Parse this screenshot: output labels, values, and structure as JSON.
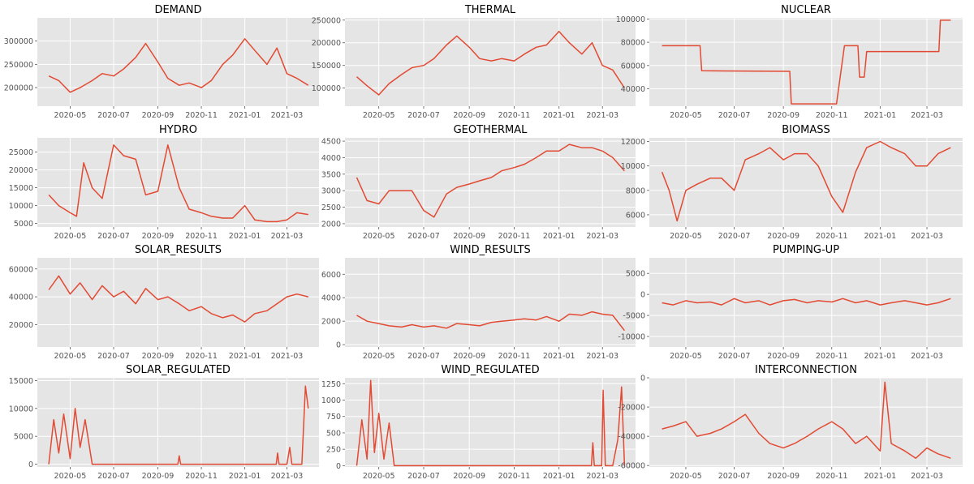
{
  "figure": {
    "colors": {
      "panel_bg": "#e5e5e5",
      "grid": "#ffffff",
      "line": "#e24a33",
      "tick_text": "#555555",
      "title_text": "#000000"
    },
    "x_ticks": [
      "2020-05",
      "2020-07",
      "2020-09",
      "2020-11",
      "2021-01",
      "2021-03"
    ],
    "x_tick_dates": [
      "2020-05-01",
      "2020-07-01",
      "2020-09-01",
      "2020-11-01",
      "2021-01-01",
      "2021-03-01"
    ],
    "x_range": [
      "2020-03-16",
      "2021-04-15"
    ]
  },
  "chart_data": [
    {
      "type": "line",
      "title": "DEMAND",
      "grid": true,
      "ylim": [
        160000,
        350000
      ],
      "yticks": [
        200000,
        250000,
        300000
      ],
      "x": [
        "2020-04-01",
        "2020-04-15",
        "2020-05-01",
        "2020-05-15",
        "2020-06-01",
        "2020-06-15",
        "2020-07-01",
        "2020-07-15",
        "2020-08-01",
        "2020-08-15",
        "2020-09-01",
        "2020-09-15",
        "2020-10-01",
        "2020-10-15",
        "2020-11-01",
        "2020-11-15",
        "2020-12-01",
        "2020-12-15",
        "2021-01-01",
        "2021-01-15",
        "2021-02-01",
        "2021-02-15",
        "2021-03-01",
        "2021-03-15",
        "2021-03-31"
      ],
      "y": [
        225000,
        215000,
        190000,
        200000,
        215000,
        230000,
        225000,
        240000,
        265000,
        295000,
        255000,
        220000,
        205000,
        210000,
        200000,
        215000,
        250000,
        270000,
        305000,
        280000,
        250000,
        285000,
        230000,
        220000,
        205000
      ]
    },
    {
      "type": "line",
      "title": "THERMAL",
      "grid": true,
      "ylim": [
        60000,
        255000
      ],
      "yticks": [
        100000,
        150000,
        200000,
        250000
      ],
      "x": [
        "2020-04-01",
        "2020-04-15",
        "2020-05-01",
        "2020-05-15",
        "2020-06-01",
        "2020-06-15",
        "2020-07-01",
        "2020-07-15",
        "2020-08-01",
        "2020-08-15",
        "2020-09-01",
        "2020-09-15",
        "2020-10-01",
        "2020-10-15",
        "2020-11-01",
        "2020-11-15",
        "2020-12-01",
        "2020-12-15",
        "2021-01-01",
        "2021-01-15",
        "2021-02-01",
        "2021-02-15",
        "2021-03-01",
        "2021-03-15",
        "2021-03-31"
      ],
      "y": [
        125000,
        105000,
        85000,
        110000,
        130000,
        145000,
        150000,
        165000,
        195000,
        215000,
        190000,
        165000,
        160000,
        165000,
        160000,
        175000,
        190000,
        195000,
        225000,
        200000,
        175000,
        200000,
        150000,
        140000,
        100000
      ]
    },
    {
      "type": "line",
      "title": "NUCLEAR",
      "grid": true,
      "ylim": [
        25000,
        101000
      ],
      "yticks": [
        40000,
        60000,
        80000,
        100000
      ],
      "x": [
        "2020-04-01",
        "2020-05-19",
        "2020-05-21",
        "2020-09-09",
        "2020-09-11",
        "2020-11-07",
        "2020-11-17",
        "2020-12-04",
        "2020-12-06",
        "2020-12-12",
        "2020-12-15",
        "2021-03-16",
        "2021-03-18",
        "2021-03-31"
      ],
      "y": [
        77000,
        77000,
        55500,
        55000,
        27000,
        27000,
        77000,
        77000,
        50000,
        50000,
        72000,
        72000,
        99000,
        99000
      ]
    },
    {
      "type": "line",
      "title": "HYDRO",
      "grid": true,
      "ylim": [
        4000,
        29000
      ],
      "yticks": [
        5000,
        10000,
        15000,
        20000,
        25000
      ],
      "x": [
        "2020-04-01",
        "2020-04-15",
        "2020-05-01",
        "2020-05-10",
        "2020-05-20",
        "2020-06-01",
        "2020-06-15",
        "2020-07-01",
        "2020-07-15",
        "2020-08-01",
        "2020-08-15",
        "2020-09-01",
        "2020-09-15",
        "2020-10-01",
        "2020-10-15",
        "2020-11-01",
        "2020-11-15",
        "2020-12-01",
        "2020-12-15",
        "2021-01-01",
        "2021-01-15",
        "2021-02-01",
        "2021-02-15",
        "2021-03-01",
        "2021-03-15",
        "2021-03-31"
      ],
      "y": [
        13000,
        10000,
        8000,
        7000,
        22000,
        15000,
        12000,
        27000,
        24000,
        23000,
        13000,
        14000,
        27000,
        15000,
        9000,
        8000,
        7000,
        6500,
        6500,
        10000,
        6000,
        5500,
        5500,
        6000,
        8000,
        7500
      ]
    },
    {
      "type": "line",
      "title": "GEOTHERMAL",
      "grid": true,
      "ylim": [
        1900,
        4600
      ],
      "yticks": [
        2000,
        2500,
        3000,
        3500,
        4000,
        4500
      ],
      "x": [
        "2020-04-01",
        "2020-04-15",
        "2020-05-01",
        "2020-05-15",
        "2020-06-01",
        "2020-06-15",
        "2020-07-01",
        "2020-07-15",
        "2020-08-01",
        "2020-08-15",
        "2020-09-01",
        "2020-09-15",
        "2020-10-01",
        "2020-10-15",
        "2020-11-01",
        "2020-11-15",
        "2020-12-01",
        "2020-12-15",
        "2021-01-01",
        "2021-01-15",
        "2021-02-01",
        "2021-02-15",
        "2021-03-01",
        "2021-03-15",
        "2021-03-31"
      ],
      "y": [
        3400,
        2700,
        2600,
        3000,
        3000,
        3000,
        2400,
        2200,
        2900,
        3100,
        3200,
        3300,
        3400,
        3600,
        3700,
        3800,
        4000,
        4200,
        4200,
        4400,
        4300,
        4300,
        4200,
        4000,
        3600
      ]
    },
    {
      "type": "line",
      "title": "BIOMASS",
      "grid": true,
      "ylim": [
        5000,
        12300
      ],
      "yticks": [
        6000,
        8000,
        10000,
        12000
      ],
      "x": [
        "2020-04-01",
        "2020-04-10",
        "2020-04-20",
        "2020-05-01",
        "2020-05-15",
        "2020-06-01",
        "2020-06-15",
        "2020-07-01",
        "2020-07-15",
        "2020-08-01",
        "2020-08-15",
        "2020-09-01",
        "2020-09-15",
        "2020-10-01",
        "2020-10-15",
        "2020-11-01",
        "2020-11-15",
        "2020-12-01",
        "2020-12-15",
        "2021-01-01",
        "2021-01-15",
        "2021-02-01",
        "2021-02-15",
        "2021-03-01",
        "2021-03-15",
        "2021-03-31"
      ],
      "y": [
        9500,
        8000,
        5500,
        8000,
        8500,
        9000,
        9000,
        8000,
        10500,
        11000,
        11500,
        10500,
        11000,
        11000,
        10000,
        7500,
        6200,
        9500,
        11500,
        12000,
        11500,
        11000,
        10000,
        10000,
        11000,
        11500
      ]
    },
    {
      "type": "line",
      "title": "SOLAR_RESULTS",
      "grid": true,
      "ylim": [
        4000,
        68000
      ],
      "yticks": [
        20000,
        40000,
        60000
      ],
      "x": [
        "2020-04-01",
        "2020-04-15",
        "2020-05-01",
        "2020-05-15",
        "2020-06-01",
        "2020-06-15",
        "2020-07-01",
        "2020-07-15",
        "2020-08-01",
        "2020-08-15",
        "2020-09-01",
        "2020-09-15",
        "2020-10-01",
        "2020-10-15",
        "2020-11-01",
        "2020-11-15",
        "2020-12-01",
        "2020-12-15",
        "2021-01-01",
        "2021-01-15",
        "2021-02-01",
        "2021-02-15",
        "2021-03-01",
        "2021-03-15",
        "2021-03-31"
      ],
      "y": [
        45000,
        55000,
        42000,
        50000,
        38000,
        48000,
        40000,
        44000,
        35000,
        46000,
        38000,
        40000,
        35000,
        30000,
        33000,
        28000,
        25000,
        27000,
        22000,
        28000,
        30000,
        35000,
        40000,
        42000,
        40000
      ]
    },
    {
      "type": "line",
      "title": "WIND_RESULTS",
      "grid": true,
      "ylim": [
        -200,
        7400
      ],
      "yticks": [
        0,
        2000,
        4000,
        6000
      ],
      "x": [
        "2020-04-01",
        "2020-04-15",
        "2020-05-01",
        "2020-05-15",
        "2020-06-01",
        "2020-06-15",
        "2020-07-01",
        "2020-07-15",
        "2020-08-01",
        "2020-08-15",
        "2020-09-01",
        "2020-09-15",
        "2020-10-01",
        "2020-10-15",
        "2020-11-01",
        "2020-11-15",
        "2020-12-01",
        "2020-12-15",
        "2021-01-01",
        "2021-01-15",
        "2021-02-01",
        "2021-02-15",
        "2021-03-01",
        "2021-03-15",
        "2021-03-31"
      ],
      "y": [
        2500,
        2000,
        1800,
        1600,
        1500,
        1700,
        1500,
        1600,
        1400,
        1800,
        1700,
        1600,
        1900,
        2000,
        2100,
        2200,
        2100,
        2400,
        2000,
        2600,
        2500,
        2800,
        2600,
        2500,
        1200
      ]
    },
    {
      "type": "line",
      "title": "PUMPING-UP",
      "grid": true,
      "ylim": [
        -12500,
        8700
      ],
      "yticks": [
        -10000,
        -5000,
        0,
        5000
      ],
      "x": [
        "2020-04-01",
        "2020-04-15",
        "2020-05-01",
        "2020-05-15",
        "2020-06-01",
        "2020-06-15",
        "2020-07-01",
        "2020-07-15",
        "2020-08-01",
        "2020-08-15",
        "2020-09-01",
        "2020-09-15",
        "2020-10-01",
        "2020-10-15",
        "2020-11-01",
        "2020-11-15",
        "2020-12-01",
        "2020-12-15",
        "2021-01-01",
        "2021-01-15",
        "2021-02-01",
        "2021-02-15",
        "2021-03-01",
        "2021-03-15",
        "2021-03-31"
      ],
      "y": [
        -2000,
        -2500,
        -1500,
        -2000,
        -1800,
        -2500,
        -1000,
        -2000,
        -1500,
        -2500,
        -1500,
        -1200,
        -2000,
        -1500,
        -1800,
        -1000,
        -2000,
        -1500,
        -2500,
        -2000,
        -1500,
        -2000,
        -2500,
        -2000,
        -1000
      ]
    },
    {
      "type": "line",
      "title": "SOLAR_REGULATED",
      "grid": true,
      "ylim": [
        -500,
        15500
      ],
      "yticks": [
        0,
        5000,
        10000,
        15000
      ],
      "x": [
        "2020-04-01",
        "2020-04-08",
        "2020-04-15",
        "2020-04-22",
        "2020-05-01",
        "2020-05-08",
        "2020-05-15",
        "2020-05-22",
        "2020-06-01",
        "2020-06-15",
        "2020-07-01",
        "2020-09-29",
        "2020-10-01",
        "2020-10-03",
        "2021-02-14",
        "2021-02-16",
        "2021-02-18",
        "2021-03-01",
        "2021-03-05",
        "2021-03-08",
        "2021-03-15",
        "2021-03-22",
        "2021-03-27",
        "2021-03-31"
      ],
      "y": [
        0,
        8000,
        2000,
        9000,
        1000,
        10000,
        3000,
        8000,
        0,
        0,
        0,
        0,
        1500,
        0,
        0,
        2000,
        0,
        0,
        3000,
        0,
        0,
        0,
        14000,
        10000
      ]
    },
    {
      "type": "line",
      "title": "WIND_REGULATED",
      "grid": true,
      "ylim": [
        -20,
        1340
      ],
      "yticks": [
        0,
        250,
        500,
        750,
        1000,
        1250
      ],
      "x": [
        "2020-04-01",
        "2020-04-08",
        "2020-04-15",
        "2020-04-20",
        "2020-04-25",
        "2020-05-01",
        "2020-05-08",
        "2020-05-15",
        "2020-05-22",
        "2020-06-01",
        "2021-02-14",
        "2021-02-16",
        "2021-02-18",
        "2021-02-28",
        "2021-03-02",
        "2021-03-05",
        "2021-03-15",
        "2021-03-22",
        "2021-03-27",
        "2021-03-31"
      ],
      "y": [
        0,
        700,
        100,
        1300,
        200,
        800,
        100,
        650,
        0,
        0,
        0,
        350,
        0,
        0,
        1150,
        0,
        0,
        400,
        1200,
        0
      ]
    },
    {
      "type": "line",
      "title": "INTERCONNECTION",
      "grid": true,
      "ylim": [
        -61000,
        0
      ],
      "yticks": [
        -60000,
        -40000,
        -20000,
        0
      ],
      "x": [
        "2020-04-01",
        "2020-04-15",
        "2020-05-01",
        "2020-05-15",
        "2020-06-01",
        "2020-06-15",
        "2020-07-01",
        "2020-07-15",
        "2020-08-01",
        "2020-08-15",
        "2020-09-01",
        "2020-09-15",
        "2020-10-01",
        "2020-10-15",
        "2020-11-01",
        "2020-11-15",
        "2020-12-01",
        "2020-12-15",
        "2021-01-01",
        "2021-01-07",
        "2021-01-15",
        "2021-02-01",
        "2021-02-15",
        "2021-03-01",
        "2021-03-15",
        "2021-03-31"
      ],
      "y": [
        -35000,
        -33000,
        -30000,
        -40000,
        -38000,
        -35000,
        -30000,
        -25000,
        -38000,
        -45000,
        -48000,
        -45000,
        -40000,
        -35000,
        -30000,
        -35000,
        -45000,
        -40000,
        -50000,
        -3000,
        -45000,
        -50000,
        -55000,
        -48000,
        -52000,
        -55000
      ]
    }
  ]
}
